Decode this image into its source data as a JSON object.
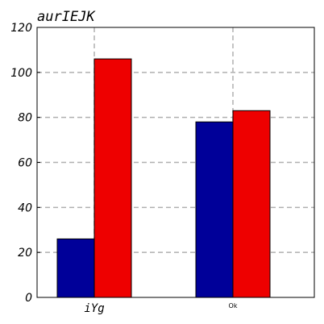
{
  "chart_data": {
    "type": "bar",
    "title": "aurIEJK",
    "categories": [
      "iYg",
      "Ok"
    ],
    "series": [
      {
        "color": "#000099",
        "values": [
          26,
          78
        ]
      },
      {
        "color": "#ee0000",
        "values": [
          106,
          83
        ]
      }
    ],
    "ylim": [
      0,
      120
    ],
    "yticks": [
      "0",
      "20",
      "40",
      "60",
      "80",
      "100",
      "120"
    ],
    "grid": true,
    "grid_style": "dashed",
    "grid_color": "#b0b0b0"
  }
}
